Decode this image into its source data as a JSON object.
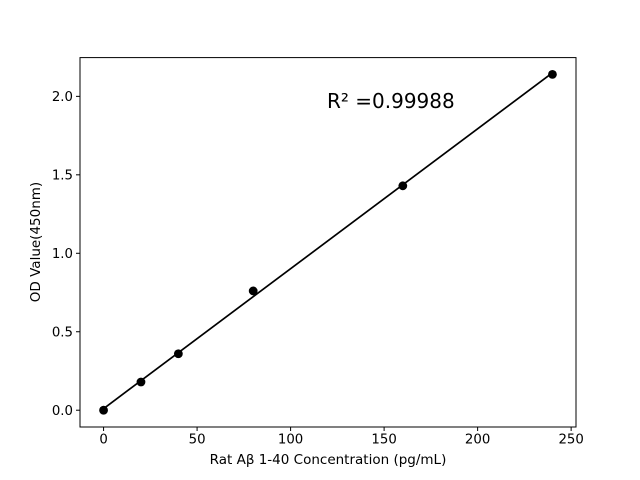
{
  "chart_data": {
    "type": "scatter",
    "title": "",
    "xlabel": "Rat Aβ 1-40 Concentration (pg/mL)",
    "ylabel": "OD Value(450nm)",
    "annotation": "R² =0.99988",
    "xlim": [
      -12.6,
      252.6
    ],
    "ylim": [
      -0.107,
      2.247
    ],
    "xticks": [
      "0",
      "50",
      "100",
      "150",
      "200",
      "250"
    ],
    "yticks": [
      "0.0",
      "0.5",
      "1.0",
      "1.5",
      "2.0"
    ],
    "grid": false,
    "legend": "none",
    "background_color": "#ffffff",
    "line_color": "#000000",
    "marker_color": "#000000",
    "series": [
      {
        "name": "linear-fit-line",
        "type": "line",
        "x": [
          0,
          240
        ],
        "y": [
          0.01,
          2.15
        ]
      },
      {
        "name": "standard-points",
        "type": "scatter",
        "x": [
          0,
          20,
          40,
          80,
          160,
          240
        ],
        "y": [
          0.0,
          0.18,
          0.36,
          0.76,
          1.43,
          2.14
        ]
      }
    ]
  }
}
